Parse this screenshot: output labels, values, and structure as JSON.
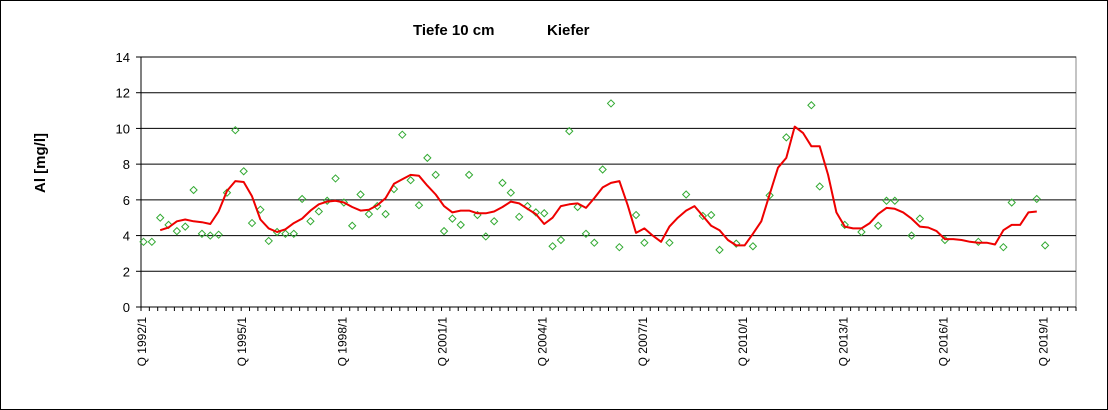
{
  "chart_data": {
    "type": "line",
    "title_depth": "Tiefe  10 cm",
    "title_site": "Kiefer",
    "ylabel": "Al [mg/l]",
    "xlabel": "",
    "ylim": [
      0,
      14
    ],
    "yticks": [
      0,
      2,
      4,
      6,
      8,
      10,
      12,
      14
    ],
    "grid": true,
    "x_range_quarters": [
      0,
      112
    ],
    "x_tick_labels": [
      {
        "label": "Q 1992/1",
        "quarter": 0
      },
      {
        "label": "Q 1995/1",
        "quarter": 12
      },
      {
        "label": "Q 1998/1",
        "quarter": 24
      },
      {
        "label": "Q 2001/1",
        "quarter": 36
      },
      {
        "label": "Q 2004/1",
        "quarter": 48
      },
      {
        "label": "Q 2007/1",
        "quarter": 60
      },
      {
        "label": "Q 2010/1",
        "quarter": 72
      },
      {
        "label": "Q 2013/1",
        "quarter": 84
      },
      {
        "label": "Q 2016/1",
        "quarter": 96
      },
      {
        "label": "Q 2019/1",
        "quarter": 108
      }
    ],
    "series": [
      {
        "kind": "scatter",
        "color": "#33aa33",
        "points": [
          [
            0.3,
            3.65
          ],
          [
            1.3,
            3.65
          ],
          [
            2.3,
            5.0
          ],
          [
            3.3,
            4.6
          ],
          [
            4.3,
            4.25
          ],
          [
            5.3,
            4.5
          ],
          [
            6.3,
            6.55
          ],
          [
            7.3,
            4.1
          ],
          [
            8.3,
            4.0
          ],
          [
            9.3,
            4.05
          ],
          [
            10.3,
            6.4
          ],
          [
            11.3,
            9.9
          ],
          [
            12.3,
            7.6
          ],
          [
            13.3,
            4.7
          ],
          [
            14.3,
            5.45
          ],
          [
            15.3,
            3.7
          ],
          [
            16.3,
            4.2
          ],
          [
            17.3,
            4.1
          ],
          [
            18.3,
            4.1
          ],
          [
            19.3,
            6.05
          ],
          [
            20.3,
            4.8
          ],
          [
            21.3,
            5.35
          ],
          [
            22.3,
            5.95
          ],
          [
            23.3,
            7.2
          ],
          [
            24.3,
            5.85
          ],
          [
            25.3,
            4.55
          ],
          [
            26.3,
            6.3
          ],
          [
            27.3,
            5.2
          ],
          [
            28.3,
            5.65
          ],
          [
            29.3,
            5.2
          ],
          [
            30.3,
            6.6
          ],
          [
            31.3,
            9.65
          ],
          [
            32.3,
            7.1
          ],
          [
            33.3,
            5.7
          ],
          [
            34.3,
            8.35
          ],
          [
            35.3,
            7.4
          ],
          [
            36.3,
            4.25
          ],
          [
            37.3,
            4.95
          ],
          [
            38.3,
            4.6
          ],
          [
            39.3,
            7.4
          ],
          [
            40.3,
            5.15
          ],
          [
            41.3,
            3.95
          ],
          [
            42.3,
            4.8
          ],
          [
            43.3,
            6.95
          ],
          [
            44.3,
            6.4
          ],
          [
            45.3,
            5.05
          ],
          [
            46.3,
            5.65
          ],
          [
            47.3,
            5.3
          ],
          [
            48.3,
            5.25
          ],
          [
            49.3,
            3.4
          ],
          [
            50.3,
            3.75
          ],
          [
            51.3,
            9.85
          ],
          [
            52.3,
            5.6
          ],
          [
            53.3,
            4.1
          ],
          [
            54.3,
            3.6
          ],
          [
            55.3,
            7.7
          ],
          [
            56.3,
            11.4
          ],
          [
            57.3,
            3.35
          ],
          [
            59.3,
            5.15
          ],
          [
            60.3,
            3.6
          ],
          [
            63.3,
            3.6
          ],
          [
            65.3,
            6.3
          ],
          [
            67.3,
            5.1
          ],
          [
            68.3,
            5.15
          ],
          [
            69.3,
            3.2
          ],
          [
            71.3,
            3.55
          ],
          [
            73.3,
            3.4
          ],
          [
            75.3,
            6.25
          ],
          [
            77.3,
            9.5
          ],
          [
            80.3,
            11.3
          ],
          [
            81.3,
            6.75
          ],
          [
            84.3,
            4.6
          ],
          [
            86.3,
            4.2
          ],
          [
            88.3,
            4.55
          ],
          [
            89.3,
            5.95
          ],
          [
            90.3,
            5.95
          ],
          [
            92.3,
            4.0
          ],
          [
            93.3,
            4.95
          ],
          [
            96.3,
            3.75
          ],
          [
            100.3,
            3.65
          ],
          [
            103.3,
            3.35
          ],
          [
            104.3,
            5.85
          ],
          [
            107.3,
            6.05
          ],
          [
            108.3,
            3.45
          ]
        ]
      },
      {
        "kind": "line",
        "color": "#ee0000",
        "points": [
          [
            2.3,
            4.3
          ],
          [
            3.3,
            4.45
          ],
          [
            4.3,
            4.8
          ],
          [
            5.3,
            4.9
          ],
          [
            6.3,
            4.8
          ],
          [
            7.3,
            4.75
          ],
          [
            8.3,
            4.65
          ],
          [
            9.3,
            5.35
          ],
          [
            10.3,
            6.5
          ],
          [
            11.3,
            7.05
          ],
          [
            12.3,
            7.0
          ],
          [
            13.3,
            6.2
          ],
          [
            14.3,
            4.9
          ],
          [
            15.3,
            4.4
          ],
          [
            16.3,
            4.2
          ],
          [
            17.3,
            4.35
          ],
          [
            18.3,
            4.7
          ],
          [
            19.3,
            4.95
          ],
          [
            20.3,
            5.4
          ],
          [
            21.3,
            5.75
          ],
          [
            22.3,
            5.9
          ],
          [
            23.3,
            5.95
          ],
          [
            24.3,
            5.85
          ],
          [
            25.3,
            5.6
          ],
          [
            26.3,
            5.4
          ],
          [
            27.3,
            5.45
          ],
          [
            28.3,
            5.7
          ],
          [
            29.3,
            6.1
          ],
          [
            30.3,
            6.9
          ],
          [
            31.3,
            7.15
          ],
          [
            32.3,
            7.4
          ],
          [
            33.3,
            7.35
          ],
          [
            34.3,
            6.8
          ],
          [
            35.3,
            6.3
          ],
          [
            36.3,
            5.65
          ],
          [
            37.3,
            5.3
          ],
          [
            38.3,
            5.4
          ],
          [
            39.3,
            5.4
          ],
          [
            40.3,
            5.25
          ],
          [
            41.3,
            5.25
          ],
          [
            42.3,
            5.35
          ],
          [
            43.3,
            5.6
          ],
          [
            44.3,
            5.9
          ],
          [
            45.3,
            5.8
          ],
          [
            46.3,
            5.5
          ],
          [
            47.3,
            5.2
          ],
          [
            48.3,
            4.65
          ],
          [
            49.3,
            5.0
          ],
          [
            50.3,
            5.65
          ],
          [
            51.3,
            5.75
          ],
          [
            52.3,
            5.8
          ],
          [
            53.3,
            5.55
          ],
          [
            54.3,
            6.1
          ],
          [
            55.3,
            6.7
          ],
          [
            56.3,
            6.95
          ],
          [
            57.3,
            7.05
          ],
          [
            58.3,
            5.7
          ],
          [
            59.3,
            4.15
          ],
          [
            60.3,
            4.4
          ],
          [
            61.3,
            4.0
          ],
          [
            62.3,
            3.65
          ],
          [
            63.3,
            4.5
          ],
          [
            64.3,
            5.0
          ],
          [
            65.3,
            5.4
          ],
          [
            66.3,
            5.65
          ],
          [
            67.3,
            5.1
          ],
          [
            68.3,
            4.55
          ],
          [
            69.3,
            4.3
          ],
          [
            70.3,
            3.75
          ],
          [
            71.3,
            3.45
          ],
          [
            72.3,
            3.45
          ],
          [
            73.3,
            4.1
          ],
          [
            74.3,
            4.8
          ],
          [
            75.3,
            6.3
          ],
          [
            76.3,
            7.8
          ],
          [
            77.3,
            8.35
          ],
          [
            78.3,
            10.1
          ],
          [
            79.3,
            9.75
          ],
          [
            80.3,
            9.0
          ],
          [
            81.3,
            9.0
          ],
          [
            82.3,
            7.4
          ],
          [
            83.3,
            5.3
          ],
          [
            84.3,
            4.5
          ],
          [
            85.3,
            4.4
          ],
          [
            86.3,
            4.4
          ],
          [
            87.3,
            4.7
          ],
          [
            88.3,
            5.2
          ],
          [
            89.3,
            5.55
          ],
          [
            90.3,
            5.5
          ],
          [
            91.3,
            5.3
          ],
          [
            92.3,
            4.95
          ],
          [
            93.3,
            4.5
          ],
          [
            94.3,
            4.45
          ],
          [
            95.3,
            4.25
          ],
          [
            96.3,
            3.8
          ],
          [
            97.3,
            3.8
          ],
          [
            98.3,
            3.75
          ],
          [
            99.3,
            3.65
          ],
          [
            100.3,
            3.6
          ],
          [
            101.3,
            3.6
          ],
          [
            102.3,
            3.5
          ],
          [
            103.3,
            4.3
          ],
          [
            104.3,
            4.6
          ],
          [
            105.3,
            4.6
          ],
          [
            106.3,
            5.3
          ],
          [
            107.3,
            5.35
          ]
        ]
      }
    ]
  }
}
